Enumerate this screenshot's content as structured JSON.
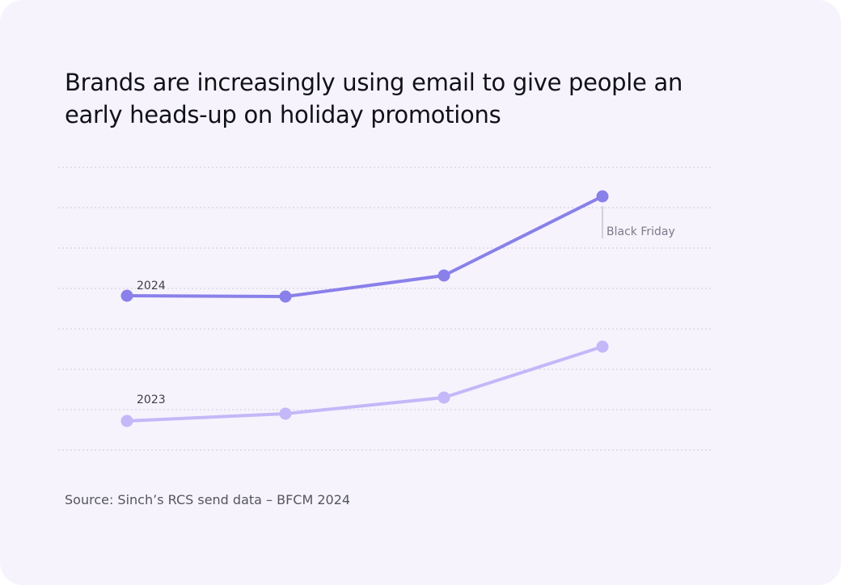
{
  "title": "Brands are increasingly using email to give people an early heads-up on holiday promotions",
  "source": "Source: Sinch’s RCS send data – BFCM 2024",
  "chart_data": {
    "type": "line",
    "title": "Brands are increasingly using email to give people an early heads-up on holiday promotions",
    "xlabel": "",
    "ylabel": "",
    "x": [
      1,
      2,
      3,
      4
    ],
    "ylim": [
      0,
      7
    ],
    "grid": true,
    "legend": "inline labels at series start",
    "series": [
      {
        "name": "2024",
        "color": "#8a80ea",
        "values": [
          3.82,
          3.8,
          4.32,
          6.28
        ]
      },
      {
        "name": "2023",
        "color": "#c4b8f8",
        "values": [
          0.72,
          0.9,
          1.3,
          2.56
        ]
      }
    ],
    "annotations": [
      {
        "text": "Black Friday",
        "series": "2024",
        "x": 4
      }
    ]
  }
}
